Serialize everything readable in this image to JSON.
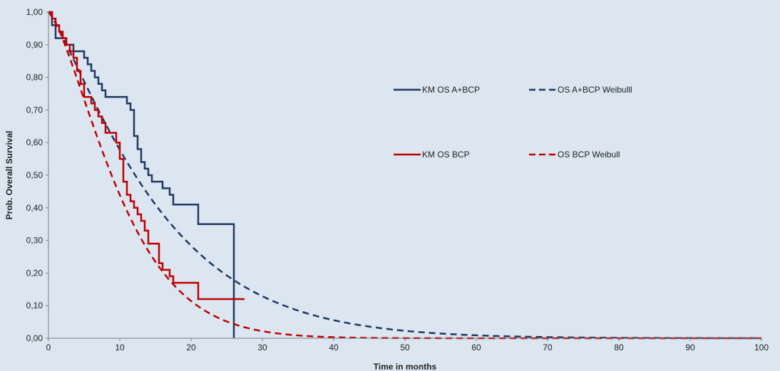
{
  "chart_data": {
    "type": "line",
    "xlabel": "Time in months",
    "ylabel": "Prob. Overall Survival",
    "xlim": [
      0,
      100
    ],
    "ylim": [
      0,
      1
    ],
    "x_ticks": [
      "0",
      "10",
      "20",
      "30",
      "40",
      "50",
      "60",
      "70",
      "80",
      "90",
      "100"
    ],
    "y_ticks": [
      "0,00",
      "0,10",
      "0,20",
      "0,30",
      "0,40",
      "0,50",
      "0,60",
      "0,70",
      "0,80",
      "0,90",
      "1,00"
    ],
    "grid": false,
    "legend_position": "right",
    "series": [
      {
        "name": "KM OS A+BCP",
        "style": "step",
        "color": "#203864",
        "points": [
          [
            0,
            1.0
          ],
          [
            0.5,
            0.96
          ],
          [
            1.0,
            0.92
          ],
          [
            2.0,
            0.92
          ],
          [
            2.5,
            0.9
          ],
          [
            3.0,
            0.9
          ],
          [
            3.5,
            0.88
          ],
          [
            4.5,
            0.88
          ],
          [
            5.0,
            0.86
          ],
          [
            5.5,
            0.84
          ],
          [
            6.0,
            0.82
          ],
          [
            6.5,
            0.8
          ],
          [
            7.0,
            0.78
          ],
          [
            7.5,
            0.76
          ],
          [
            8.0,
            0.74
          ],
          [
            9.5,
            0.74
          ],
          [
            10.0,
            0.74
          ],
          [
            11.0,
            0.72
          ],
          [
            11.5,
            0.7
          ],
          [
            12.0,
            0.62
          ],
          [
            12.5,
            0.58
          ],
          [
            13.0,
            0.54
          ],
          [
            13.5,
            0.52
          ],
          [
            14.0,
            0.5
          ],
          [
            14.5,
            0.48
          ],
          [
            15.0,
            0.48
          ],
          [
            16.0,
            0.46
          ],
          [
            16.5,
            0.46
          ],
          [
            17.0,
            0.44
          ],
          [
            17.5,
            0.41
          ],
          [
            20.0,
            0.41
          ],
          [
            21.0,
            0.35
          ],
          [
            26.0,
            0.35
          ],
          [
            26.0,
            0.0
          ]
        ]
      },
      {
        "name": "OS A+BCP Weibulll",
        "style": "dashed",
        "color": "#203864",
        "model": {
          "scale": 16.5,
          "shape": 1.2
        }
      },
      {
        "name": "KM OS BCP",
        "style": "step",
        "color": "#c00000",
        "points": [
          [
            0,
            1.0
          ],
          [
            0.5,
            0.98
          ],
          [
            1.0,
            0.96
          ],
          [
            1.5,
            0.94
          ],
          [
            2.0,
            0.92
          ],
          [
            2.5,
            0.9
          ],
          [
            3.0,
            0.88
          ],
          [
            3.5,
            0.86
          ],
          [
            4.0,
            0.82
          ],
          [
            4.5,
            0.78
          ],
          [
            5.0,
            0.74
          ],
          [
            6.0,
            0.72
          ],
          [
            6.5,
            0.7
          ],
          [
            7.0,
            0.68
          ],
          [
            7.5,
            0.66
          ],
          [
            8.0,
            0.63
          ],
          [
            9.0,
            0.63
          ],
          [
            9.5,
            0.6
          ],
          [
            10.0,
            0.55
          ],
          [
            10.5,
            0.48
          ],
          [
            11.0,
            0.44
          ],
          [
            11.5,
            0.42
          ],
          [
            12.0,
            0.4
          ],
          [
            12.5,
            0.38
          ],
          [
            13.0,
            0.36
          ],
          [
            13.5,
            0.33
          ],
          [
            14.0,
            0.29
          ],
          [
            15.0,
            0.29
          ],
          [
            15.5,
            0.23
          ],
          [
            16.0,
            0.21
          ],
          [
            17.0,
            0.19
          ],
          [
            17.5,
            0.17
          ],
          [
            21.0,
            0.17
          ],
          [
            21.0,
            0.12
          ],
          [
            27.5,
            0.12
          ]
        ]
      },
      {
        "name": "OS BCP Weibull",
        "style": "dashed",
        "color": "#c00000",
        "model": {
          "scale": 11.5,
          "shape": 1.4
        }
      }
    ]
  }
}
